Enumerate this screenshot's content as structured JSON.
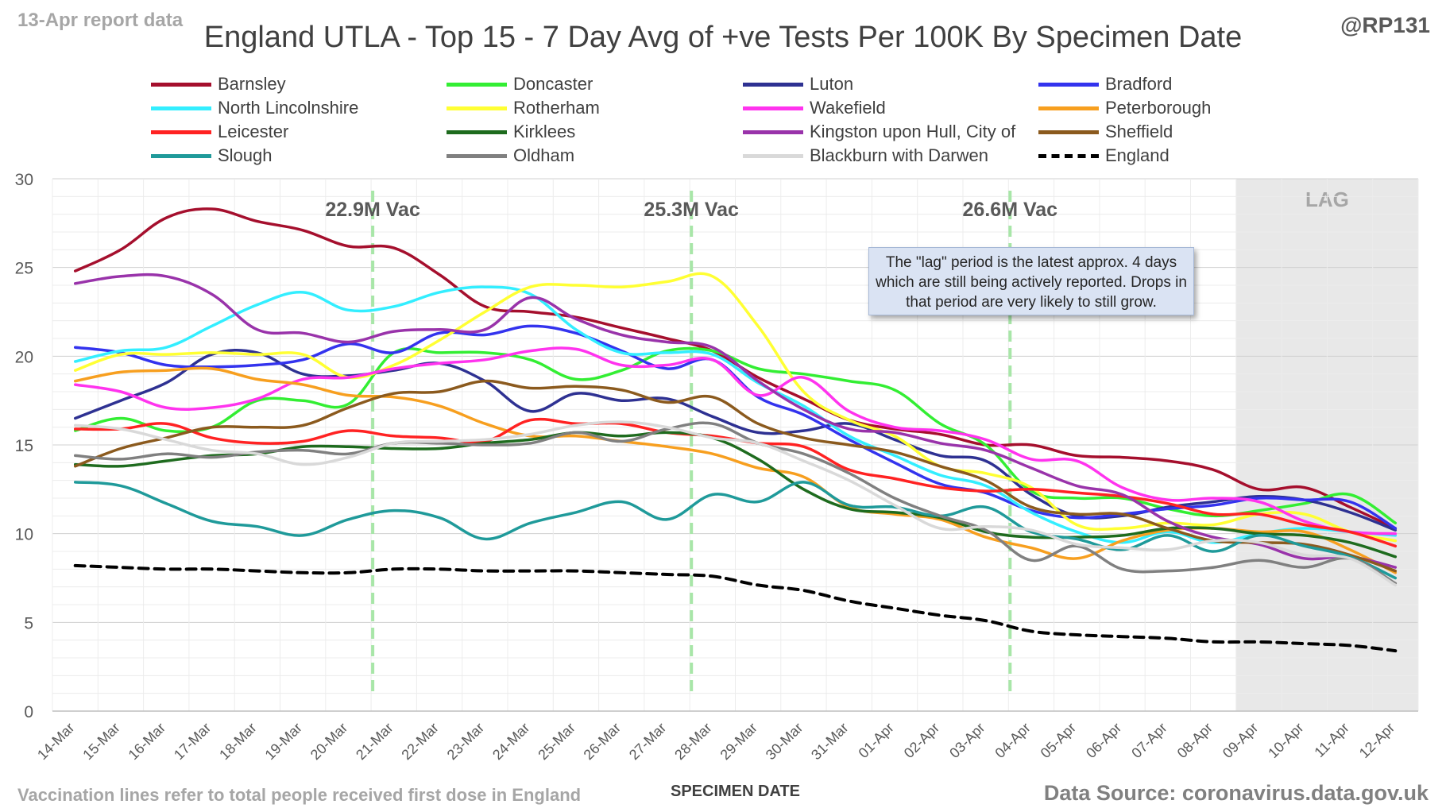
{
  "header": {
    "report_label": "13-Apr report data",
    "handle": "@RP131",
    "title": "England UTLA - Top 15 - 7 Day Avg of +ve Tests Per 100K By Specimen Date"
  },
  "footer": {
    "note": "Vaccination lines refer to total people received first dose in England",
    "source": "Data Source: coronavirus.data.gov.uk"
  },
  "annotation": {
    "lag_label": "LAG",
    "lag_note": "The \"lag\" period is the latest approx. 4 days which are still being actively reported. Drops in that period are very likely to still grow."
  },
  "chart_data": {
    "type": "line",
    "title": "England UTLA - Top 15 - 7 Day Avg of +ve Tests Per 100K By Specimen Date",
    "xlabel": "SPECIMEN DATE",
    "ylabel": "",
    "ylim": [
      0,
      30
    ],
    "yticks": [
      0,
      5,
      10,
      15,
      20,
      25,
      30
    ],
    "grid": true,
    "legend_position": "top",
    "categories": [
      "14-Mar",
      "15-Mar",
      "16-Mar",
      "17-Mar",
      "18-Mar",
      "19-Mar",
      "20-Mar",
      "21-Mar",
      "22-Mar",
      "23-Mar",
      "24-Mar",
      "25-Mar",
      "26-Mar",
      "27-Mar",
      "28-Mar",
      "29-Mar",
      "30-Mar",
      "31-Mar",
      "01-Apr",
      "02-Apr",
      "03-Apr",
      "04-Apr",
      "05-Apr",
      "06-Apr",
      "07-Apr",
      "08-Apr",
      "09-Apr",
      "10-Apr",
      "11-Apr",
      "12-Apr"
    ],
    "lag_start_index": 26,
    "vaccination_lines": [
      {
        "after_index": 6,
        "label": "22.9M Vac"
      },
      {
        "after_index": 13,
        "label": "25.3M Vac"
      },
      {
        "after_index": 20,
        "label": "26.6M Vac"
      }
    ],
    "series": [
      {
        "name": "Barnsley",
        "color": "#a50f2d",
        "values": [
          24.8,
          26,
          27.8,
          28.3,
          27.6,
          27.1,
          26.2,
          26.1,
          24.6,
          22.8,
          22.5,
          22.2,
          21.6,
          21,
          20.3,
          18.8,
          17.6,
          16.4,
          15.9,
          15.6,
          15,
          15,
          14.4,
          14.3,
          14.1,
          13.6,
          12.5,
          12.6,
          11.5,
          10.3
        ]
      },
      {
        "name": "Doncaster",
        "color": "#33ee33",
        "values": [
          15.8,
          16.5,
          15.8,
          16,
          17.5,
          17.5,
          17.3,
          20.2,
          20.2,
          20.2,
          19.8,
          18.7,
          19.2,
          20.3,
          20.3,
          19.3,
          19,
          18.6,
          18.1,
          16.2,
          15,
          12.4,
          12,
          12,
          11.4,
          11,
          11.3,
          11.7,
          12.2,
          10.6
        ]
      },
      {
        "name": "Luton",
        "color": "#2e3192",
        "values": [
          16.5,
          17.5,
          18.5,
          20.1,
          20.2,
          19,
          18.9,
          19.2,
          19.6,
          18.6,
          16.9,
          17.9,
          17.5,
          17.6,
          16.6,
          15.7,
          15.8,
          16.2,
          15.3,
          14.4,
          14.1,
          12.2,
          11,
          11,
          11.5,
          11.8,
          12.1,
          11.9,
          11.2,
          10.2
        ]
      },
      {
        "name": "Bradford",
        "color": "#3333ee",
        "values": [
          20.5,
          20.2,
          19.5,
          19.4,
          19.5,
          19.8,
          20.7,
          20.2,
          21.3,
          21.2,
          21.7,
          21.3,
          20.3,
          19.3,
          19.8,
          17.7,
          16.7,
          15.3,
          14,
          12.8,
          12.3,
          11.3,
          10.9,
          11.1,
          11.4,
          11.6,
          12,
          11.9,
          11.8,
          10.3
        ]
      },
      {
        "name": "North Lincolnshire",
        "color": "#33eeff",
        "values": [
          19.7,
          20.3,
          20.5,
          21.7,
          22.9,
          23.6,
          22.6,
          22.8,
          23.6,
          23.9,
          23.5,
          21.5,
          20.2,
          20.2,
          20.1,
          18.5,
          17.2,
          15.5,
          14.4,
          13.3,
          12.7,
          11.2,
          10.1,
          9.5,
          10.1,
          9.5,
          10,
          10.3,
          10.1,
          9.9
        ]
      },
      {
        "name": "Rotherham",
        "color": "#ffff33",
        "values": [
          19.2,
          20.1,
          20.1,
          20.2,
          20.1,
          20.1,
          18.8,
          19.5,
          20.9,
          22.5,
          23.9,
          24,
          23.9,
          24.2,
          24.5,
          21.7,
          18,
          16.4,
          15.5,
          13.8,
          13.4,
          12.6,
          10.5,
          10.3,
          10.6,
          10.5,
          11.1,
          11.1,
          10.1,
          9.6
        ]
      },
      {
        "name": "Wakefield",
        "color": "#ff33ee",
        "values": [
          18.4,
          18,
          17.1,
          17.1,
          17.6,
          18.7,
          18.8,
          19.3,
          19.6,
          19.8,
          20.3,
          20.4,
          19.5,
          19.5,
          19.8,
          17.8,
          18.8,
          16.9,
          16,
          15.8,
          15.3,
          14.2,
          14.1,
          12.6,
          11.9,
          12,
          11.8,
          10.7,
          10.1,
          10
        ]
      },
      {
        "name": "Peterborough",
        "color": "#f79f1f",
        "values": [
          18.6,
          19.1,
          19.2,
          19.3,
          18.7,
          18.4,
          17.8,
          17.7,
          17.2,
          16.2,
          15.5,
          15.5,
          15.2,
          14.9,
          14.5,
          13.7,
          13.2,
          11.5,
          11.1,
          10.8,
          9.8,
          9.2,
          8.6,
          9.6,
          10.2,
          10.3,
          10.1,
          10.1,
          9.1,
          7.8
        ]
      },
      {
        "name": "Leicester",
        "color": "#ff2222",
        "values": [
          15.9,
          15.9,
          16.2,
          15.4,
          15.1,
          15.2,
          15.8,
          15.5,
          15.4,
          15.2,
          16.4,
          16.2,
          16.2,
          15.7,
          15.5,
          15.1,
          14.9,
          13.6,
          13.1,
          12.6,
          12.4,
          12.5,
          12.3,
          12.1,
          11.7,
          11.1,
          11.1,
          10.5,
          10.1,
          9.3
        ]
      },
      {
        "name": "Kirklees",
        "color": "#1e6b1e",
        "values": [
          13.9,
          13.8,
          14.1,
          14.4,
          14.5,
          14.9,
          14.9,
          14.8,
          14.8,
          15.1,
          15.3,
          15.7,
          15.5,
          15.7,
          15.4,
          14.2,
          12.5,
          11.4,
          11.2,
          10.9,
          10.1,
          9.8,
          9.8,
          9.9,
          10.3,
          10.3,
          10,
          9.9,
          9.5,
          8.7
        ]
      },
      {
        "name": "Kingston upon Hull, City of",
        "color": "#9933aa",
        "values": [
          24.1,
          24.5,
          24.5,
          23.5,
          21.5,
          21.3,
          20.8,
          21.4,
          21.5,
          21.5,
          23.3,
          22.1,
          21.2,
          20.8,
          20.5,
          18.6,
          17,
          15.9,
          15.7,
          15.1,
          14.7,
          13.7,
          12.7,
          12.2,
          10.7,
          9.8,
          9.4,
          8.6,
          8.7,
          8.1
        ]
      },
      {
        "name": "Sheffield",
        "color": "#8b5a1e",
        "values": [
          13.8,
          14.8,
          15.4,
          16,
          16,
          16.1,
          17.1,
          17.9,
          18,
          18.6,
          18.2,
          18.3,
          18.1,
          17.4,
          17.7,
          16.2,
          15.4,
          15,
          14.6,
          13.8,
          13,
          11.5,
          11.1,
          11.1,
          10.3,
          9.6,
          9.5,
          9.4,
          8.8,
          7.9
        ]
      },
      {
        "name": "Slough",
        "color": "#1f9a9a",
        "values": [
          12.9,
          12.7,
          11.7,
          10.7,
          10.4,
          9.9,
          10.8,
          11.3,
          10.9,
          9.7,
          10.6,
          11.2,
          11.8,
          10.8,
          12.2,
          11.8,
          12.9,
          11.6,
          11.5,
          11,
          11.5,
          10.1,
          9.7,
          9.1,
          9.9,
          9,
          9.9,
          9.3,
          8.7,
          7.5
        ]
      },
      {
        "name": "Oldham",
        "color": "#808080",
        "values": [
          14.4,
          14.2,
          14.5,
          14.3,
          14.6,
          14.7,
          14.5,
          15.1,
          15.1,
          15,
          15.1,
          15.7,
          15.2,
          15.9,
          16.2,
          15.1,
          14.5,
          13.4,
          12,
          11,
          10.2,
          8.5,
          9.3,
          8,
          7.9,
          8.1,
          8.5,
          8.1,
          8.6,
          7.2
        ]
      },
      {
        "name": "Blackburn with Darwen",
        "color": "#d9d9d9",
        "values": [
          16.1,
          15.9,
          15.3,
          14.7,
          14.5,
          13.9,
          14.3,
          15.1,
          15.2,
          15.3,
          15.6,
          16.1,
          16.3,
          16,
          15.4,
          15.1,
          14.1,
          13,
          11.6,
          10.3,
          10.4,
          10.2,
          9.4,
          9.2,
          9.1,
          9.6,
          9.5,
          8.8,
          8.6,
          7.1
        ]
      },
      {
        "name": "England",
        "color": "#000000",
        "dashed": true,
        "values": [
          8.2,
          8.1,
          8,
          8,
          7.9,
          7.8,
          7.8,
          8,
          8,
          7.9,
          7.9,
          7.9,
          7.8,
          7.7,
          7.6,
          7.1,
          6.8,
          6.2,
          5.8,
          5.4,
          5.1,
          4.5,
          4.3,
          4.2,
          4.1,
          3.9,
          3.9,
          3.8,
          3.7,
          3.4
        ]
      }
    ]
  }
}
